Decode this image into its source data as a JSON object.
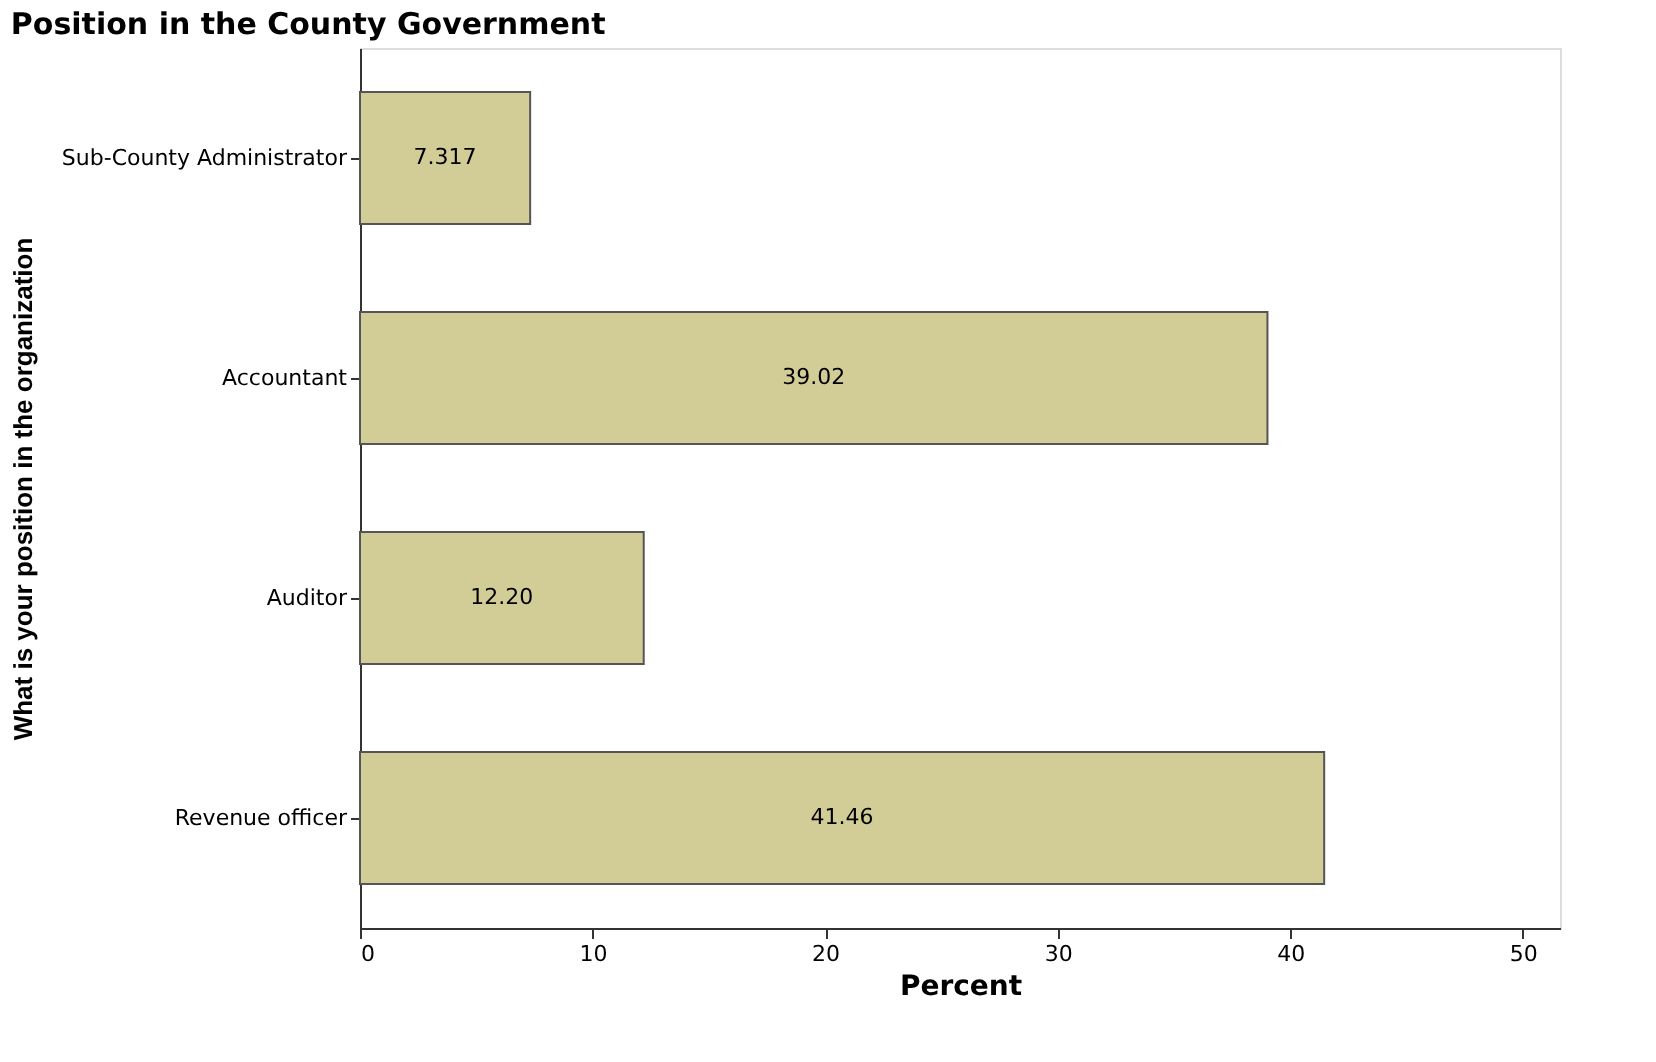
{
  "chart_data": {
    "type": "bar",
    "orientation": "horizontal",
    "title": "Position in the County Government",
    "xlabel": "Percent",
    "ylabel": "What is your position in the organization",
    "categories": [
      "Sub-County Administrator",
      "Accountant",
      "Auditor",
      "Revenue officer"
    ],
    "values": [
      7.317,
      39.02,
      12.2,
      41.46
    ],
    "value_labels": [
      "7.317",
      "39.02",
      "12.20",
      "41.46"
    ],
    "color": "#d2cc96",
    "xlim": [
      0,
      51.6
    ],
    "xticks": [
      0,
      10,
      20,
      30,
      40,
      50
    ],
    "grid": false
  }
}
